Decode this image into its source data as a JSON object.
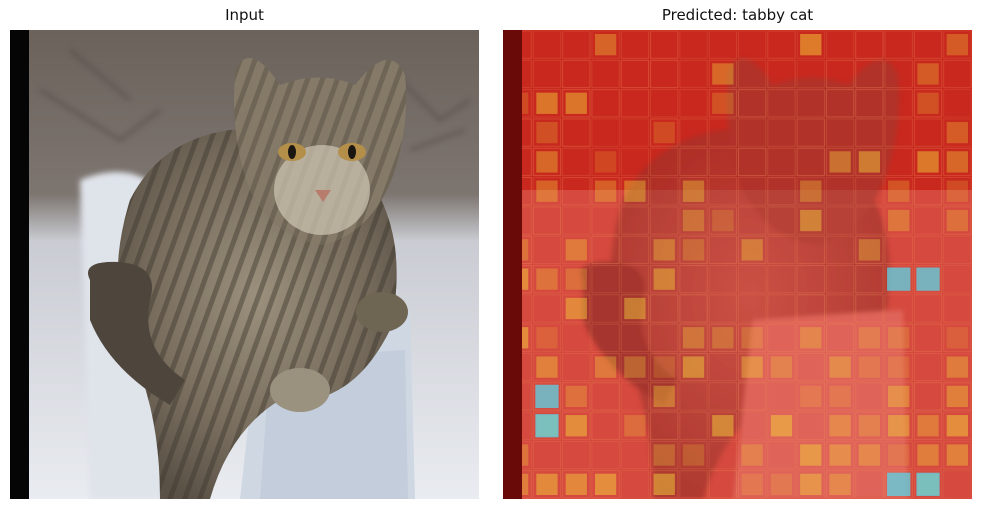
{
  "figure": {
    "left_panel": {
      "title": "Input"
    },
    "right_panel": {
      "title": "Predicted: tabby cat"
    }
  },
  "colors": {
    "heatmap_base": "#c8281e",
    "snow": "#eef0f4",
    "fur_dark": "#5a5146",
    "fur_light": "#8e8470",
    "border_black": "#050505",
    "hot_yellow": "#f2d23a",
    "cold_cyan": "#5ad6e8"
  },
  "icons": [
    "cat-photo",
    "attention-heatmap"
  ]
}
